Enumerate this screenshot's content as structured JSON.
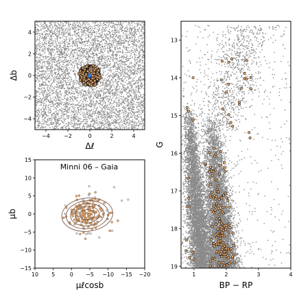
{
  "figure": {
    "title_panel3": "Minni 06  –  Gaia"
  },
  "colors": {
    "field": "#8a8a8a",
    "member_face": "#e8a86a",
    "member_edge": "#1a1a1a",
    "center": "#3a6fd8",
    "contour": "#7a5a48"
  },
  "chart_data": [
    {
      "type": "scatter",
      "id": "sky",
      "xlabel": "Δℓ",
      "ylabel": "Δb",
      "xlim": [
        -5,
        5
      ],
      "ylim": [
        -5,
        5
      ],
      "xticks": [
        -4,
        -2,
        0,
        2,
        4
      ],
      "yticks": [
        -4,
        -2,
        0,
        2,
        4
      ],
      "xtick_labels": [
        "−4",
        "−2",
        "0",
        "2",
        "4"
      ],
      "ytick_labels": [
        "−4",
        "−2",
        "0",
        "2",
        "4"
      ],
      "series": [
        {
          "role": "field",
          "n_points": 6000,
          "distribution": "uniform"
        },
        {
          "role": "members",
          "center": [
            0.0,
            0.0
          ],
          "radius": 1.0,
          "n_points": 160
        },
        {
          "role": "cluster-center",
          "x": 0.0,
          "y": 0.0
        }
      ],
      "grid": false
    },
    {
      "type": "scatter",
      "id": "proper-motion",
      "title": "Minni 06  –  Gaia",
      "xlabel": "μℓcosb",
      "ylabel": "μb",
      "xlim": [
        10,
        -20
      ],
      "ylim": [
        -15,
        15
      ],
      "xticks": [
        10,
        5,
        0,
        -5,
        -10,
        -15,
        -20
      ],
      "yticks": [
        -15,
        -10,
        -5,
        0,
        5,
        10,
        15
      ],
      "xtick_labels": [
        "10",
        "5",
        "0",
        "−5",
        "−10",
        "−15",
        "−20"
      ],
      "ytick_labels": [
        "−15",
        "−10",
        "−5",
        "0",
        "5",
        "10",
        "15"
      ],
      "series": [
        {
          "role": "field",
          "mean": [
            -4.2,
            0.0
          ],
          "sd": [
            3.8,
            3.2
          ],
          "n_points": 30
        },
        {
          "role": "members",
          "mean": [
            -4.3,
            0.0
          ],
          "sd": [
            2.5,
            2.0
          ],
          "n_points": 160
        },
        {
          "role": "density-contours",
          "center": [
            -4.3,
            -0.2
          ],
          "semi_axes": [
            [
              2.0,
              1.4
            ],
            [
              3.3,
              2.3
            ],
            [
              4.6,
              3.1
            ],
            [
              5.8,
              3.9
            ],
            [
              7.0,
              4.6
            ]
          ]
        }
      ],
      "grid": false
    },
    {
      "type": "scatter",
      "id": "cmd",
      "xlabel": "BP − RP",
      "ylabel": "G",
      "xlim": [
        0.6,
        4.0
      ],
      "ylim": [
        19.05,
        12.5
      ],
      "xticks": [
        1,
        2,
        3,
        4
      ],
      "yticks": [
        13,
        14,
        15,
        16,
        17,
        18,
        19
      ],
      "xtick_labels": [
        "1",
        "2",
        "3",
        "4"
      ],
      "ytick_labels": [
        "13",
        "14",
        "15",
        "16",
        "17",
        "18",
        "19"
      ],
      "series": [
        {
          "role": "field",
          "n_points": 14000
        },
        {
          "role": "members",
          "n_points": 200
        }
      ],
      "grid": false
    }
  ]
}
